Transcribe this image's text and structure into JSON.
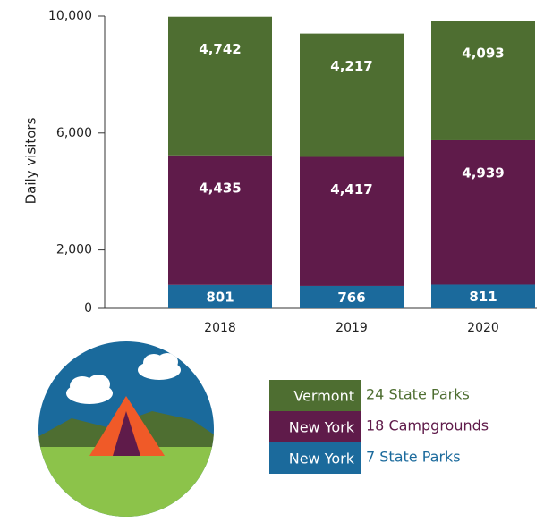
{
  "chart_data": {
    "type": "stacked_bar",
    "y_label": "Daily visitors",
    "categories": [
      "2018",
      "2019",
      "2020"
    ],
    "series": [
      {
        "name": "New York",
        "description": "7 State Parks",
        "color": "#1b6a9c",
        "values": [
          801,
          766,
          811
        ],
        "value_labels": [
          "801",
          "766",
          "811"
        ]
      },
      {
        "name": "New York",
        "description": "18 Campgrounds",
        "color": "#5f1b4a",
        "values": [
          4435,
          4417,
          4939
        ],
        "value_labels": [
          "4,435",
          "4,417",
          "4,939"
        ]
      },
      {
        "name": "Vermont",
        "description": "24 State Parks",
        "color": "#4e6e31",
        "values": [
          4742,
          4217,
          4093
        ],
        "value_labels": [
          "4,742",
          "4,217",
          "4,093"
        ]
      }
    ],
    "ylim": [
      0,
      10000
    ],
    "yticks": [
      0,
      {
        "value": 2000,
        "label": "2,000"
      },
      {
        "value": 6000,
        "label": "6,000"
      },
      {
        "value": 10000,
        "label": "10,000"
      }
    ]
  }
}
